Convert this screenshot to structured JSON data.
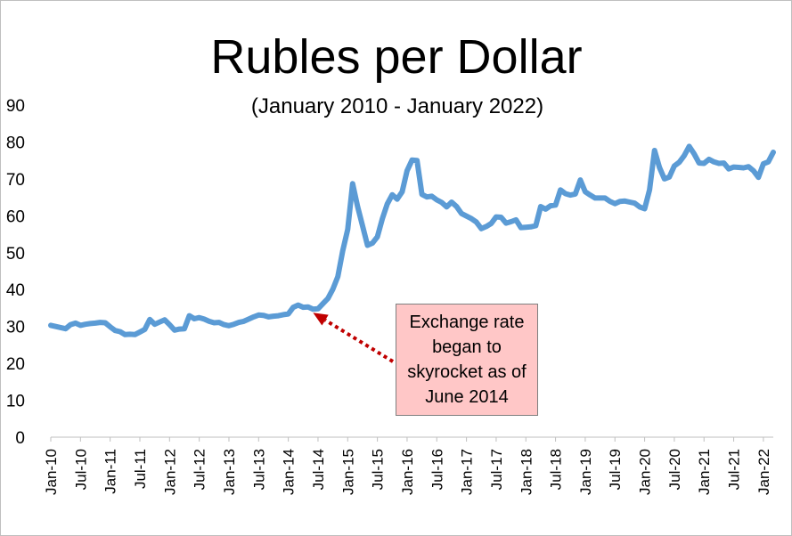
{
  "colors": {
    "series": "#5b9bd5",
    "arrow": "#c00000",
    "note_bg": "#ffc7c7"
  },
  "chart_data": {
    "type": "line",
    "title": "Rubles per Dollar",
    "subtitle": "(January 2010 - January 2022)",
    "xlabel": "",
    "ylabel": "",
    "ylim": [
      0,
      90
    ],
    "yticks": [
      0,
      10,
      20,
      30,
      40,
      50,
      60,
      70,
      80,
      90
    ],
    "xticks": [
      "Jan-10",
      "Jul-10",
      "Jan-11",
      "Jul-11",
      "Jan-12",
      "Jul-12",
      "Jan-13",
      "Jul-13",
      "Jan-14",
      "Jul-14",
      "Jan-15",
      "Jul-15",
      "Jan-16",
      "Jul-16",
      "Jan-17",
      "Jul-17",
      "Jan-18",
      "Jul-18",
      "Jan-19",
      "Jul-19",
      "Jan-20",
      "Jul-20",
      "Jan-21",
      "Jul-21",
      "Jan-22"
    ],
    "grid": false,
    "legend": "none",
    "series": [
      {
        "values": [
          30.3,
          30.0,
          29.7,
          29.4,
          30.5,
          30.9,
          30.3,
          30.6,
          30.8,
          30.9,
          31.1,
          31.0,
          29.9,
          28.9,
          28.6,
          27.8,
          27.9,
          27.8,
          28.5,
          29.2,
          31.9,
          30.6,
          31.2,
          31.8,
          30.5,
          29.0,
          29.3,
          29.4,
          32.9,
          32.1,
          32.4,
          32.0,
          31.4,
          31.0,
          31.1,
          30.5,
          30.2,
          30.6,
          31.1,
          31.4,
          32.0,
          32.6,
          33.1,
          33.0,
          32.6,
          32.8,
          32.9,
          33.2,
          33.4,
          35.2,
          35.8,
          35.2,
          35.3,
          34.7,
          34.8,
          36.2,
          37.6,
          40.1,
          43.5,
          50.5,
          56.3,
          68.7,
          62.5,
          57.2,
          52.0,
          52.6,
          54.3,
          59.2,
          63.2,
          65.7,
          64.5,
          66.5,
          72.2,
          75.1,
          75.0,
          65.8,
          65.1,
          65.3,
          64.3,
          63.6,
          62.4,
          63.7,
          62.5,
          60.6,
          59.9,
          59.2,
          58.3,
          56.5,
          57.1,
          57.9,
          59.7,
          59.6,
          58.0,
          58.4,
          58.9,
          56.8,
          56.9,
          57.0,
          57.3,
          62.5,
          61.8,
          62.7,
          62.9,
          67.0,
          66.0,
          65.6,
          65.9,
          69.7,
          66.5,
          65.6,
          64.8,
          64.8,
          64.8,
          63.9,
          63.3,
          63.9,
          64.0,
          63.7,
          63.4,
          62.4,
          61.9,
          67.0,
          77.7,
          73.1,
          70.0,
          70.5,
          73.5,
          74.5,
          76.3,
          78.8,
          76.8,
          74.3,
          74.2,
          75.3,
          74.6,
          74.2,
          74.3,
          72.7,
          73.2,
          73.1,
          73.0,
          73.3,
          72.2,
          70.4,
          74.1,
          74.6,
          77.2
        ]
      }
    ],
    "annotation": {
      "lines": [
        "Exchange rate",
        "began to",
        "skyrocket as of",
        "June 2014"
      ],
      "points_to": "Jun-14"
    }
  }
}
